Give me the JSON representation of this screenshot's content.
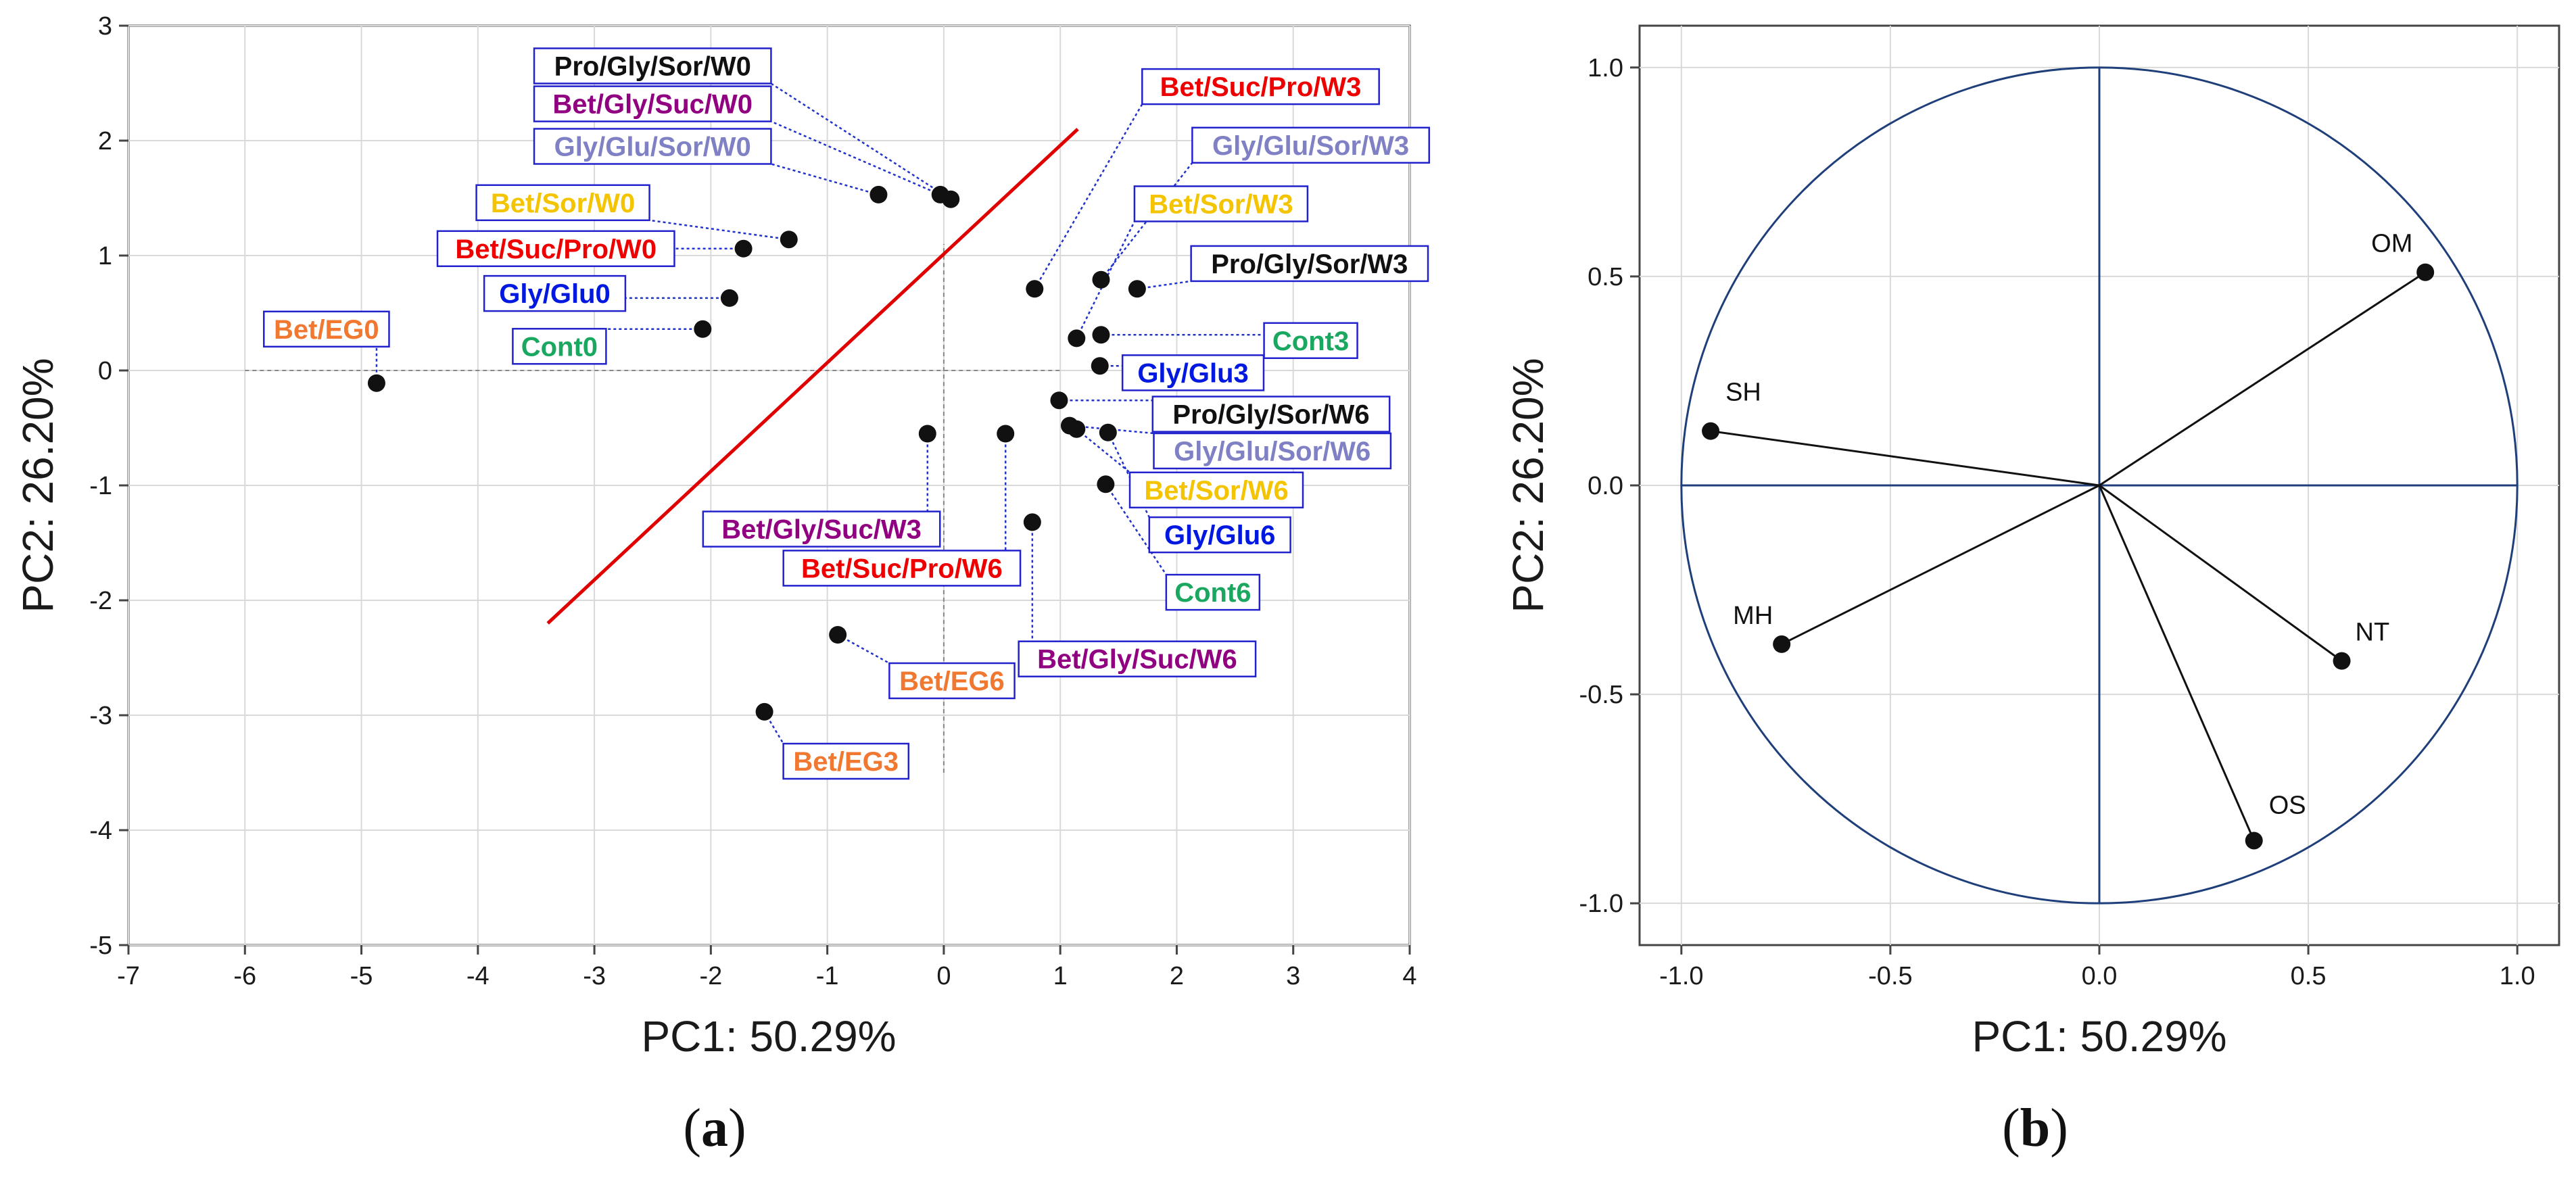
{
  "chart_data": [
    {
      "type": "scatter",
      "panel": "(a)",
      "panel_letter": "a",
      "xlabel": "PC1: 50.29%",
      "ylabel": "PC2: 26.20%",
      "xlim": [
        -7,
        4
      ],
      "ylim": [
        -5,
        3
      ],
      "xticks": [
        -7,
        -6,
        -5,
        -4,
        -3,
        -2,
        -1,
        0,
        1,
        2,
        3,
        4
      ],
      "yticks": [
        -5,
        -4,
        -3,
        -2,
        -1,
        0,
        1,
        2,
        3
      ],
      "separator_line": {
        "color": "#e00000",
        "from": [
          -3.4,
          -2.2
        ],
        "to": [
          1.15,
          2.1
        ]
      },
      "reference_lines": {
        "h_from": -6.0,
        "h_to": 1.0,
        "v_from": -3.5,
        "v_to": 1.1
      },
      "points": [
        {
          "label": "Bet/EG0",
          "x": -4.87,
          "y": -0.11,
          "color": "#f07830"
        },
        {
          "label": "Cont0",
          "x": -2.07,
          "y": 0.36,
          "color": "#1aa860"
        },
        {
          "label": "Gly/Glu0",
          "x": -1.84,
          "y": 0.63,
          "color": "#0018e0"
        },
        {
          "label": "Bet/Suc/Pro/W0",
          "x": -1.72,
          "y": 1.06,
          "color": "#ee0000"
        },
        {
          "label": "Bet/Sor/W0",
          "x": -1.33,
          "y": 1.14,
          "color": "#f4c400"
        },
        {
          "label": "Gly/Glu/Sor/W0",
          "x": -0.56,
          "y": 1.53,
          "color": "#8080c4"
        },
        {
          "label": "Bet/Gly/Suc/W0",
          "x": -0.03,
          "y": 1.53,
          "color": "#900080"
        },
        {
          "label": "Pro/Gly/Sor/W0",
          "x": 0.06,
          "y": 1.49,
          "color": "#111111"
        },
        {
          "label": "Bet/Suc/Pro/W3",
          "x": 0.78,
          "y": 0.71,
          "color": "#ee0000"
        },
        {
          "label": "Gly/Glu/Sor/W3",
          "x": 1.35,
          "y": 0.79,
          "color": "#8080c4"
        },
        {
          "label": "Bet/Sor/W3",
          "x": 1.14,
          "y": 0.28,
          "color": "#f4c400"
        },
        {
          "label": "Pro/Gly/Sor/W3",
          "x": 1.66,
          "y": 0.71,
          "color": "#111111"
        },
        {
          "label": "Cont3",
          "x": 1.35,
          "y": 0.31,
          "color": "#1aa860"
        },
        {
          "label": "Gly/Glu3",
          "x": 1.34,
          "y": 0.04,
          "color": "#0018e0"
        },
        {
          "label": "Pro/Gly/Sor/W6",
          "x": 0.99,
          "y": -0.26,
          "color": "#111111"
        },
        {
          "label": "Gly/Glu/Sor/W6",
          "x": 1.08,
          "y": -0.48,
          "color": "#8080c4"
        },
        {
          "label": "Bet/Sor/W6",
          "x": 1.14,
          "y": -0.51,
          "color": "#f4c400"
        },
        {
          "label": "Gly/Glu6",
          "x": 1.41,
          "y": -0.54,
          "color": "#0018e0"
        },
        {
          "label": "Cont6",
          "x": 1.39,
          "y": -0.99,
          "color": "#1aa860"
        },
        {
          "label": "Bet/Gly/Suc/W3",
          "x": -0.14,
          "y": -0.55,
          "color": "#900080"
        },
        {
          "label": "Bet/Suc/Pro/W6",
          "x": 0.53,
          "y": -0.55,
          "color": "#ee0000"
        },
        {
          "label": "Bet/Gly/Suc/W6",
          "x": 0.76,
          "y": -1.32,
          "color": "#900080"
        },
        {
          "label": "Bet/EG6",
          "x": -0.91,
          "y": -2.3,
          "color": "#f07830"
        },
        {
          "label": "Bet/EG3",
          "x": -1.54,
          "y": -2.97,
          "color": "#f07830"
        }
      ]
    },
    {
      "type": "scatter",
      "subtype": "correlation-circle",
      "panel": "(b)",
      "panel_letter": "b",
      "xlabel": "PC1: 50.29%",
      "ylabel": "PC2: 26.20%",
      "xlim": [
        -1.1,
        1.1
      ],
      "ylim": [
        -1.1,
        1.1
      ],
      "xticks": [
        "-1.0",
        "-0.5",
        "0.0",
        "0.5",
        "1.0"
      ],
      "yticks": [
        "1.0",
        "0.5",
        "0.0",
        "-0.5",
        "-1.0"
      ],
      "circle_radius": 1.0,
      "circle_color": "#1f3f7a",
      "vectors": [
        {
          "label": "OM",
          "x": 0.78,
          "y": 0.51
        },
        {
          "label": "SH",
          "x": -0.93,
          "y": 0.13
        },
        {
          "label": "MH",
          "x": -0.76,
          "y": -0.38
        },
        {
          "label": "NT",
          "x": 0.58,
          "y": -0.42
        },
        {
          "label": "OS",
          "x": 0.37,
          "y": -0.85
        }
      ]
    }
  ]
}
